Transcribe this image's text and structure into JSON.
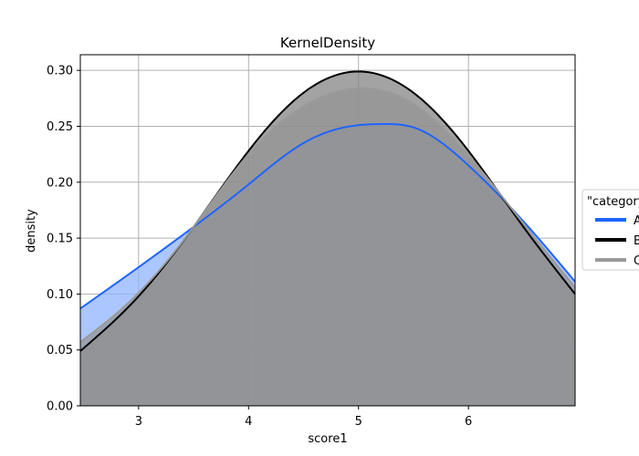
{
  "chart_data": {
    "type": "area",
    "title": "KernelDensity",
    "xlabel": "score1",
    "ylabel": "density",
    "xlim": [
      2.47,
      6.97
    ],
    "ylim": [
      0,
      0.314
    ],
    "xticks": [
      3,
      4,
      5,
      6
    ],
    "xtick_labels": [
      "3",
      "4",
      "5",
      "6"
    ],
    "yticks": [
      0,
      0.05,
      0.1,
      0.15,
      0.2,
      0.25,
      0.3
    ],
    "ytick_labels": [
      "0.00",
      "0.05",
      "0.10",
      "0.15",
      "0.20",
      "0.25",
      "0.30"
    ],
    "grid": true,
    "legend_title": "\"category\"",
    "legend_placement": "right, outside plot area",
    "series": [
      {
        "name": "A",
        "color": "#1f64ff",
        "fill_color": "#8cb1ff",
        "x": [
          2.47,
          3.0,
          3.5,
          4.0,
          4.5,
          5.0,
          5.2,
          5.5,
          6.0,
          6.5,
          6.97
        ],
        "y": [
          0.087,
          0.124,
          0.16,
          0.198,
          0.235,
          0.251,
          0.252,
          0.249,
          0.215,
          0.165,
          0.111
        ]
      },
      {
        "name": "B",
        "color": "#000000",
        "fill_color": "#7f7f7f",
        "x": [
          2.47,
          3.0,
          3.5,
          4.0,
          4.5,
          5.0,
          5.5,
          6.0,
          6.5,
          6.97
        ],
        "y": [
          0.049,
          0.098,
          0.16,
          0.228,
          0.28,
          0.299,
          0.28,
          0.228,
          0.16,
          0.1
        ]
      },
      {
        "name": "C",
        "color": "#9a9a9a",
        "fill_color": "#949494",
        "x": [
          2.47,
          3.0,
          3.5,
          4.0,
          4.5,
          5.0,
          5.5,
          6.0,
          6.5,
          6.97
        ],
        "y": [
          0.057,
          0.101,
          0.16,
          0.225,
          0.268,
          0.284,
          0.27,
          0.224,
          0.163,
          0.106
        ]
      }
    ]
  }
}
